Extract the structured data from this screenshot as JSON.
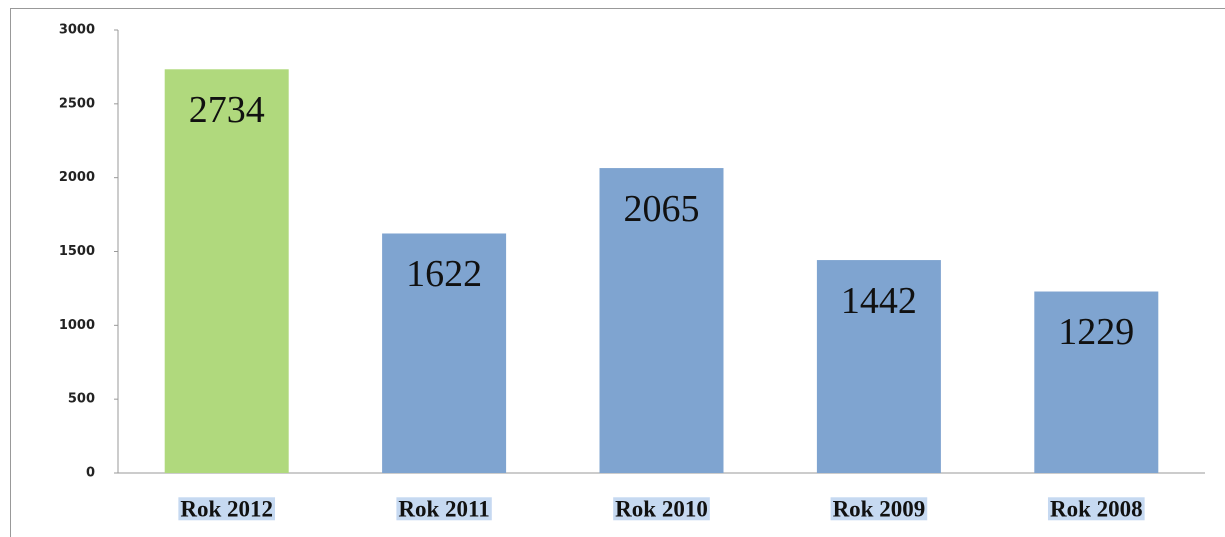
{
  "chart_data": {
    "type": "bar",
    "categories": [
      "Rok 2012",
      "Rok 2011",
      "Rok 2010",
      "Rok 2009",
      "Rok 2008"
    ],
    "values": [
      2734,
      1622,
      2065,
      1442,
      1229
    ],
    "colors": [
      "#b0d97d",
      "#7fa4d0",
      "#7fa4d0",
      "#7fa4d0",
      "#7fa4d0"
    ],
    "ylim": [
      0,
      3000
    ],
    "yticks": [
      0,
      500,
      1000,
      1500,
      2000,
      2500,
      3000
    ],
    "grid": false
  }
}
